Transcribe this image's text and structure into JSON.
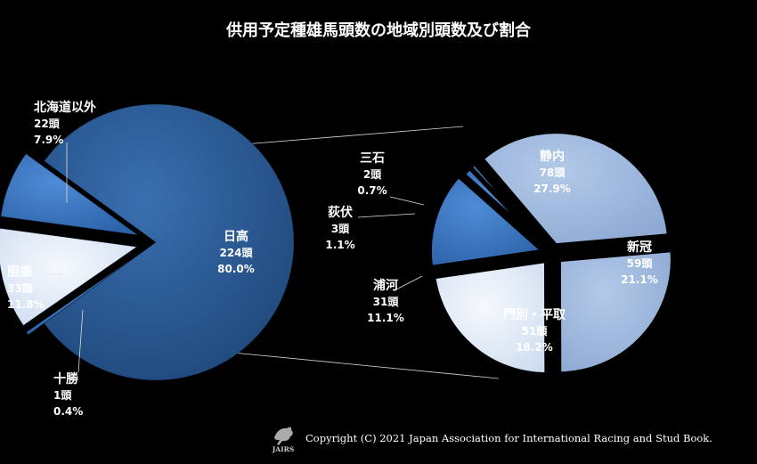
{
  "chart_data": [
    {
      "type": "pie",
      "title": "供用予定種雄馬頭数の地域別頭数及び割合",
      "categories": [
        "日高",
        "十勝",
        "胆振",
        "北海道以外"
      ],
      "values": [
        224,
        1,
        33,
        22
      ],
      "value_labels": [
        "224頭",
        "1頭",
        "33頭",
        "22頭"
      ],
      "percent_labels": [
        "80.0%",
        "0.4%",
        "11.8%",
        "7.9%"
      ]
    },
    {
      "type": "pie",
      "categories": [
        "静内",
        "新冠",
        "門別・平取",
        "浦河",
        "荻伏",
        "三石"
      ],
      "values": [
        78,
        59,
        51,
        31,
        3,
        2
      ],
      "value_labels": [
        "78頭",
        "59頭",
        "51頭",
        "31頭",
        "3頭",
        "2頭"
      ],
      "percent_labels": [
        "27.9%",
        "21.1%",
        "18.2%",
        "11.1%",
        "1.1%",
        "0.7%"
      ]
    }
  ],
  "colors": {
    "dark_blue": "#2e5d99",
    "medium_blue": "#3f7bc9",
    "light_blue": "#dfeaf9",
    "pale_blue": "#b9cce8",
    "steel_blue": "#9fb9de",
    "white_blue": "#e8eff9"
  },
  "copyright": "Copyright (C) 2021 Japan Association for International Racing and Stud Book.",
  "logo_text": "JAIRS"
}
